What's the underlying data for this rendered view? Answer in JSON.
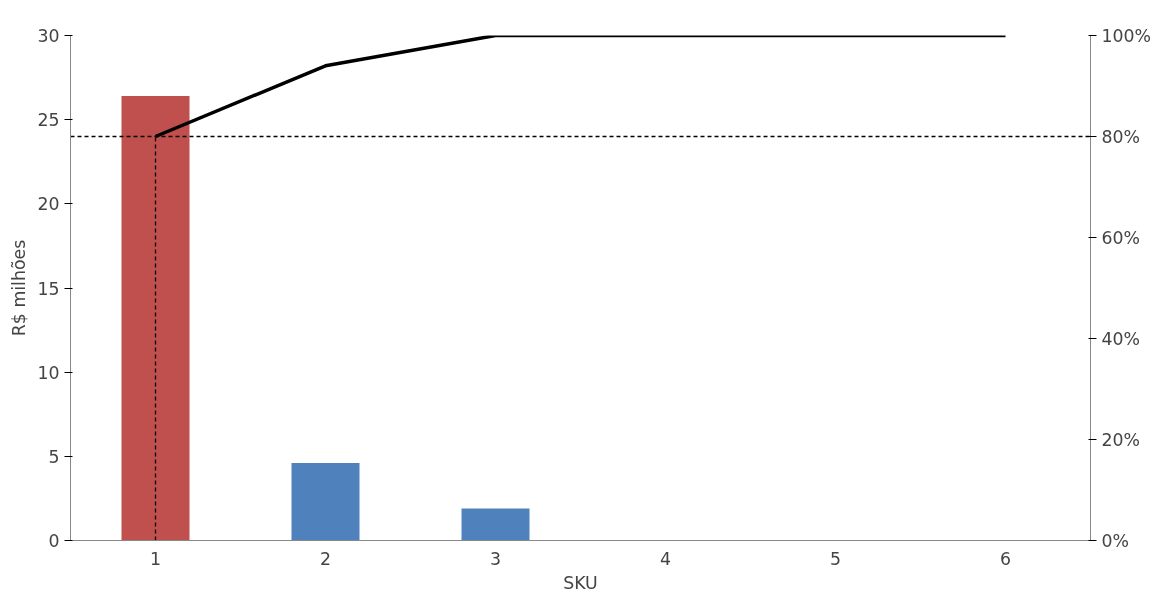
{
  "chart_data": {
    "type": "bar",
    "xlabel": "SKU",
    "ylabel": "R$ milhões",
    "categories": [
      "1",
      "2",
      "3",
      "4",
      "5",
      "6"
    ],
    "series": [
      {
        "values": [
          26.4,
          4.6,
          1.9,
          0,
          0,
          0
        ],
        "colors": [
          "#c0504d",
          "#4f81bd",
          "#4f81bd",
          "#4f81bd",
          "#4f81bd",
          "#4f81bd"
        ]
      },
      {
        "type": "line",
        "axis": "y2",
        "color": "#000000",
        "values": [
          80,
          94,
          100,
          100,
          100,
          100
        ]
      }
    ],
    "ylim": [
      0,
      30
    ],
    "yticks": [
      0,
      5,
      10,
      15,
      20,
      25,
      30
    ],
    "y2lim": [
      0,
      100
    ],
    "y2ticks": [
      {
        "value": 0,
        "label": "0%"
      },
      {
        "value": 20,
        "label": "20%"
      },
      {
        "value": 40,
        "label": "40%"
      },
      {
        "value": 60,
        "label": "60%"
      },
      {
        "value": 80,
        "label": "80%"
      },
      {
        "value": 100,
        "label": "100%"
      }
    ],
    "ref_lines": [
      {
        "axis": "y2",
        "value": 80,
        "color": "#000000",
        "line_style": "dashed"
      },
      {
        "axis": "x",
        "value": "1",
        "color": "#000000",
        "line_style": "dashed"
      }
    ],
    "grid": false,
    "marker": "none",
    "line_style": "solid"
  }
}
